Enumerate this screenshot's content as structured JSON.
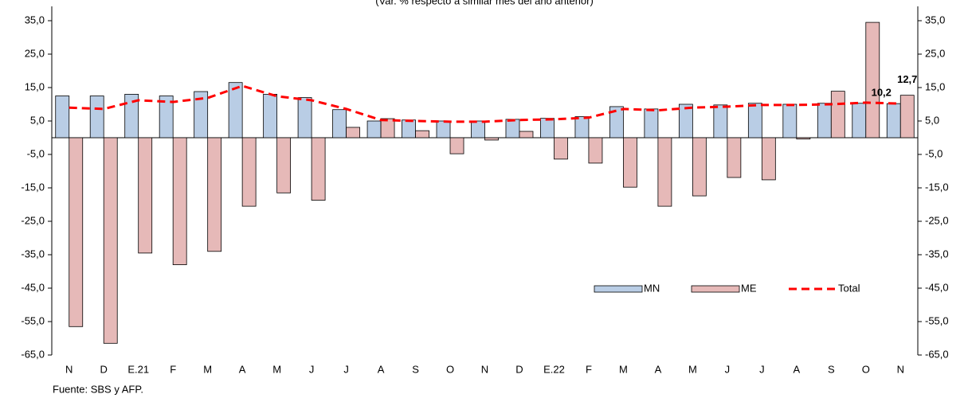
{
  "chart_data": {
    "type": "bar",
    "subtitle": "(Var. % respecto a similar mes del año anterior)",
    "source": "Fuente: SBS y AFP.",
    "categories": [
      "N",
      "D",
      "E.21",
      "F",
      "M",
      "A",
      "M",
      "J",
      "J",
      "A",
      "S",
      "O",
      "N",
      "D",
      "E.22",
      "F",
      "M",
      "A",
      "M",
      "J",
      "J",
      "A",
      "S",
      "O",
      "N"
    ],
    "series": [
      {
        "name": "MN",
        "type": "bar",
        "color": "#b9cde5",
        "values": [
          12.5,
          12.5,
          13.0,
          12.5,
          13.8,
          16.5,
          13.0,
          12.0,
          8.4,
          5.0,
          5.3,
          5.0,
          5.0,
          5.5,
          5.8,
          6.3,
          9.3,
          8.6,
          10.0,
          9.8,
          10.3,
          10.0,
          10.3,
          10.3,
          10.2
        ]
      },
      {
        "name": "ME",
        "type": "bar",
        "color": "#e6b9b8",
        "values": [
          -56.5,
          -61.5,
          -34.5,
          -38.0,
          -34.0,
          -20.5,
          -16.5,
          -18.7,
          3.1,
          5.7,
          2.1,
          -4.8,
          -0.7,
          1.9,
          -6.4,
          -7.6,
          -14.8,
          -20.5,
          -17.4,
          -11.9,
          -12.6,
          -0.4,
          13.9,
          34.5,
          12.7
        ],
        "value_labels": [
          null,
          null,
          null,
          null,
          null,
          null,
          null,
          null,
          null,
          null,
          null,
          null,
          null,
          null,
          null,
          null,
          null,
          null,
          null,
          null,
          null,
          null,
          null,
          null,
          "12,7"
        ]
      },
      {
        "name": "Total",
        "type": "line",
        "color": "#ff0000",
        "values": [
          9.0,
          8.6,
          11.2,
          10.7,
          11.9,
          15.5,
          12.4,
          11.2,
          8.6,
          5.3,
          5.0,
          4.8,
          4.8,
          5.3,
          5.5,
          6.0,
          8.6,
          8.2,
          9.0,
          9.3,
          9.8,
          9.8,
          10.0,
          10.5,
          10.2
        ],
        "value_labels": [
          null,
          null,
          null,
          null,
          null,
          null,
          null,
          null,
          null,
          null,
          null,
          null,
          null,
          null,
          null,
          null,
          null,
          null,
          null,
          null,
          null,
          null,
          null,
          null,
          "10,2"
        ]
      }
    ],
    "ylim": [
      -65,
      35
    ],
    "yticks": [
      {
        "value": -65,
        "label": "-65,0"
      },
      {
        "value": -55,
        "label": "-55,0"
      },
      {
        "value": -45,
        "label": "-45,0"
      },
      {
        "value": -35,
        "label": "-35,0"
      },
      {
        "value": -25,
        "label": "-25,0"
      },
      {
        "value": -15,
        "label": "-15,0"
      },
      {
        "value": -5,
        "label": "-5,0"
      },
      {
        "value": 5,
        "label": "5,0"
      },
      {
        "value": 15,
        "label": "15,0"
      },
      {
        "value": 25,
        "label": "25,0"
      },
      {
        "value": 35,
        "label": "35,0"
      }
    ],
    "y2lim": [
      -65,
      35
    ],
    "y2ticks": [
      {
        "value": -65,
        "label": "-65,0"
      },
      {
        "value": -55,
        "label": "-55,0"
      },
      {
        "value": -45,
        "label": "-45,0"
      },
      {
        "value": -35,
        "label": "-35,0"
      },
      {
        "value": -25,
        "label": "-25,0"
      },
      {
        "value": -15,
        "label": "-15,0"
      },
      {
        "value": -5,
        "label": "-5,0"
      },
      {
        "value": 5,
        "label": "5,0"
      },
      {
        "value": 15,
        "label": "15,0"
      },
      {
        "value": 25,
        "label": "25,0"
      },
      {
        "value": 35,
        "label": "35,0"
      }
    ],
    "grid": false,
    "legend": "lower right"
  }
}
